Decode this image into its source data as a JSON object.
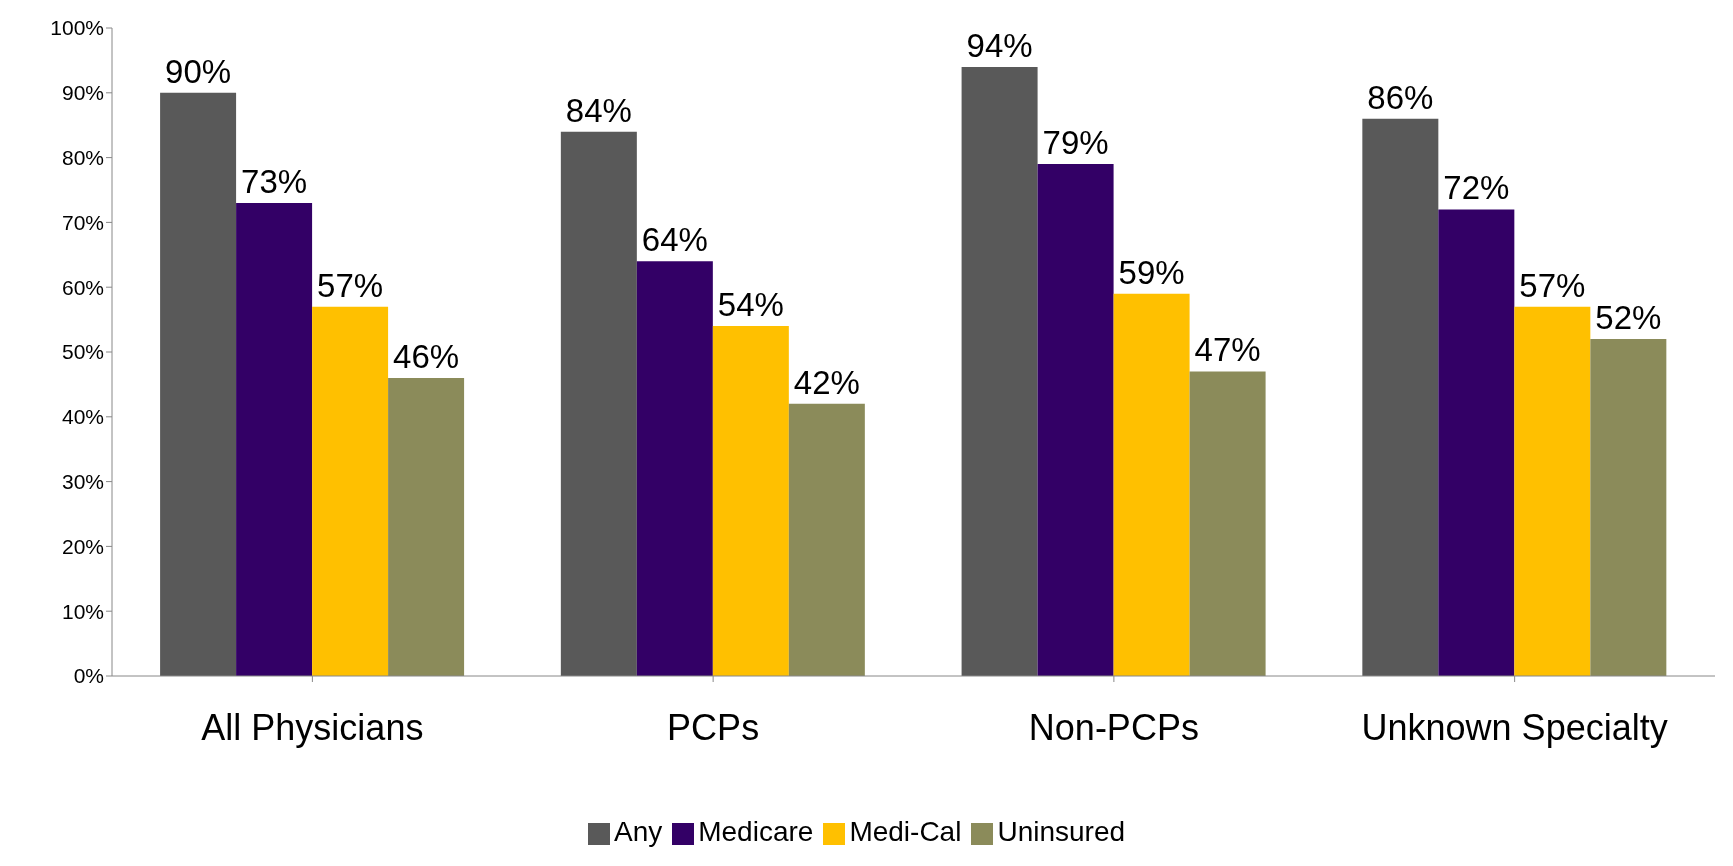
{
  "chart_data": {
    "type": "bar",
    "categories": [
      "All Physicians",
      "PCPs",
      "Non-PCPs",
      "Unknown Specialty"
    ],
    "series": [
      {
        "name": "Any",
        "color": "#595959",
        "values": [
          90,
          84,
          94,
          86
        ],
        "value_labels": [
          "90%",
          "84%",
          "94%",
          "86%"
        ]
      },
      {
        "name": "Medicare",
        "color": "#330066",
        "values": [
          73,
          64,
          79,
          72
        ],
        "value_labels": [
          "73%",
          "64%",
          "79%",
          "72%"
        ]
      },
      {
        "name": "Medi-Cal",
        "color": "#ffc000",
        "values": [
          57,
          54,
          59,
          57
        ],
        "value_labels": [
          "57%",
          "54%",
          "59%",
          "57%"
        ]
      },
      {
        "name": "Uninsured",
        "color": "#8b8b5a",
        "values": [
          46,
          42,
          47,
          52
        ],
        "value_labels": [
          "46%",
          "42%",
          "47%",
          "52%"
        ]
      }
    ],
    "ylim": [
      0,
      100
    ],
    "yticks": [
      {
        "value": 0,
        "label": "0%"
      },
      {
        "value": 10,
        "label": "10%"
      },
      {
        "value": 20,
        "label": "20%"
      },
      {
        "value": 30,
        "label": "30%"
      },
      {
        "value": 40,
        "label": "40%"
      },
      {
        "value": 50,
        "label": "50%"
      },
      {
        "value": 60,
        "label": "60%"
      },
      {
        "value": 70,
        "label": "70%"
      },
      {
        "value": 80,
        "label": "80%"
      },
      {
        "value": 90,
        "label": "90%"
      },
      {
        "value": 100,
        "label": "100%"
      }
    ],
    "grid": false,
    "legend": "bottom"
  }
}
